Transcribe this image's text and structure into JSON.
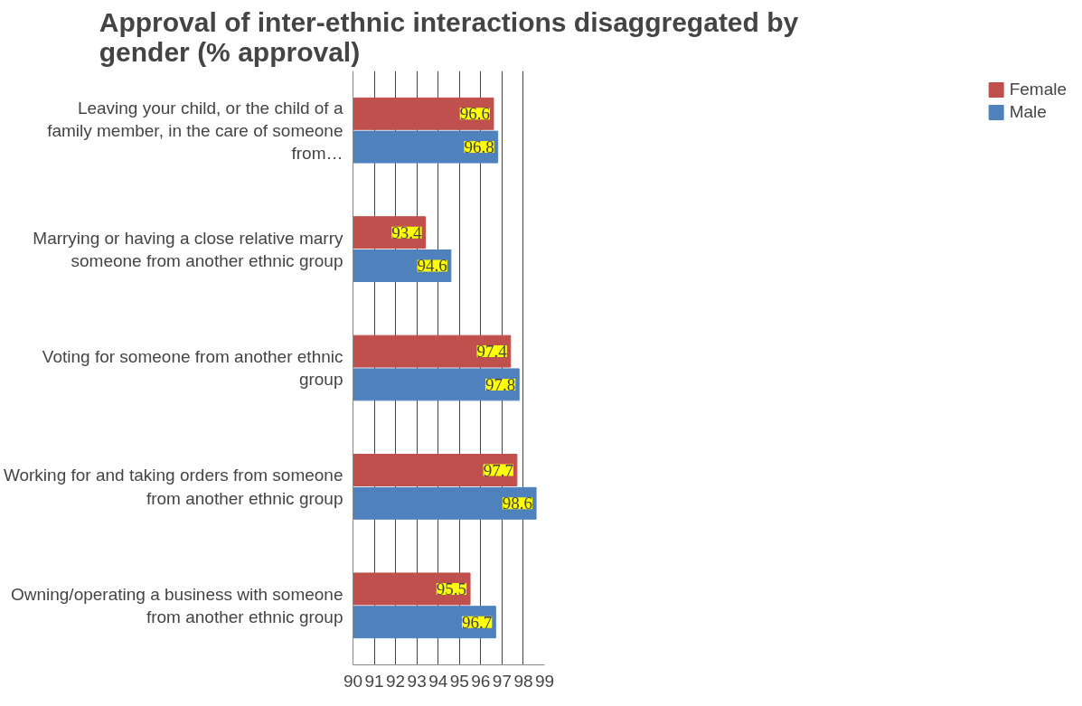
{
  "chart_data": {
    "type": "bar",
    "orientation": "horizontal",
    "title": "Approval of inter-ethnic interactions disaggregated by gender  (% approval)",
    "categories": [
      "Leaving your child, or the child of a family member, in the care of someone from…",
      "Marrying or having a close relative marry someone from another ethnic group",
      "Voting for someone from another ethnic group",
      "Working for and taking orders from someone from another ethnic group",
      "Owning/operating a business with someone from another ethnic group"
    ],
    "series": [
      {
        "name": "Female",
        "color": "#c0504d",
        "values": [
          96.6,
          93.4,
          97.4,
          97.7,
          95.5
        ]
      },
      {
        "name": "Male",
        "color": "#4f81bd",
        "values": [
          96.8,
          94.6,
          97.8,
          98.6,
          96.7
        ]
      }
    ],
    "xlim": [
      90,
      99
    ],
    "xticks": [
      90,
      91,
      92,
      93,
      94,
      95,
      96,
      97,
      98,
      99
    ],
    "grid": "x",
    "legend": "right",
    "data_labels": true
  }
}
